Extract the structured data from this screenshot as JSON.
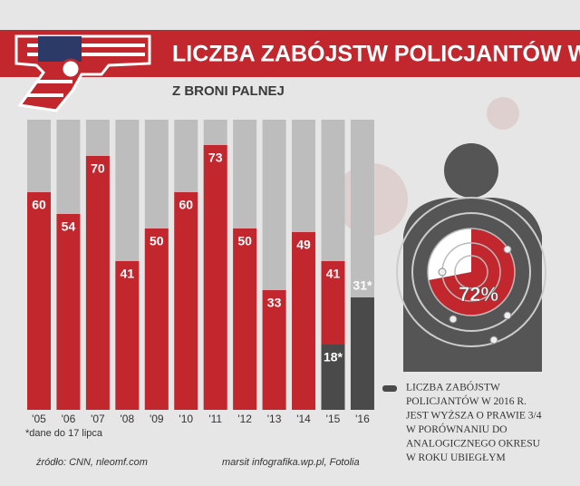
{
  "chart_data": [
    {
      "type": "bar",
      "title": "LICZBA ZABÓJSTW POLICJANTÓW W USA",
      "subtitle": "Z BRONI PALNEJ",
      "categories": [
        "'05",
        "'06",
        "'07",
        "'08",
        "'09",
        "'10",
        "'11",
        "'12",
        "'13",
        "'14",
        "'15",
        "'16"
      ],
      "series": [
        {
          "color": "#c1272d",
          "values": [
            60,
            54,
            70,
            41,
            50,
            60,
            73,
            50,
            33,
            49,
            41,
            null
          ]
        },
        {
          "color": "#4a4a4a",
          "values": [
            null,
            null,
            null,
            null,
            null,
            null,
            null,
            null,
            null,
            null,
            18,
            31
          ],
          "value_labels": [
            null,
            null,
            null,
            null,
            null,
            null,
            null,
            null,
            null,
            null,
            "18*",
            "31*"
          ]
        }
      ],
      "ylim": [
        0,
        80
      ],
      "footnote": "*dane do 17 lipca"
    },
    {
      "type": "pie",
      "values": [
        72
      ],
      "value_labels": [
        "72%"
      ],
      "color": "#c1272d"
    }
  ],
  "note": [
    "LICZBA ZABÓJSTW",
    "POLICJANTÓW W 2016 R.",
    "JEST WYŻSZA O PRAWIE 3/4",
    "W PORÓWNANIU DO",
    "ANALOGICZNEGO OKRESU",
    "W ROKU UBIEGŁYM"
  ],
  "source": "źródło: CNN, nleomf.com",
  "credit": "marsit infografika.wp.pl, Fotolia"
}
